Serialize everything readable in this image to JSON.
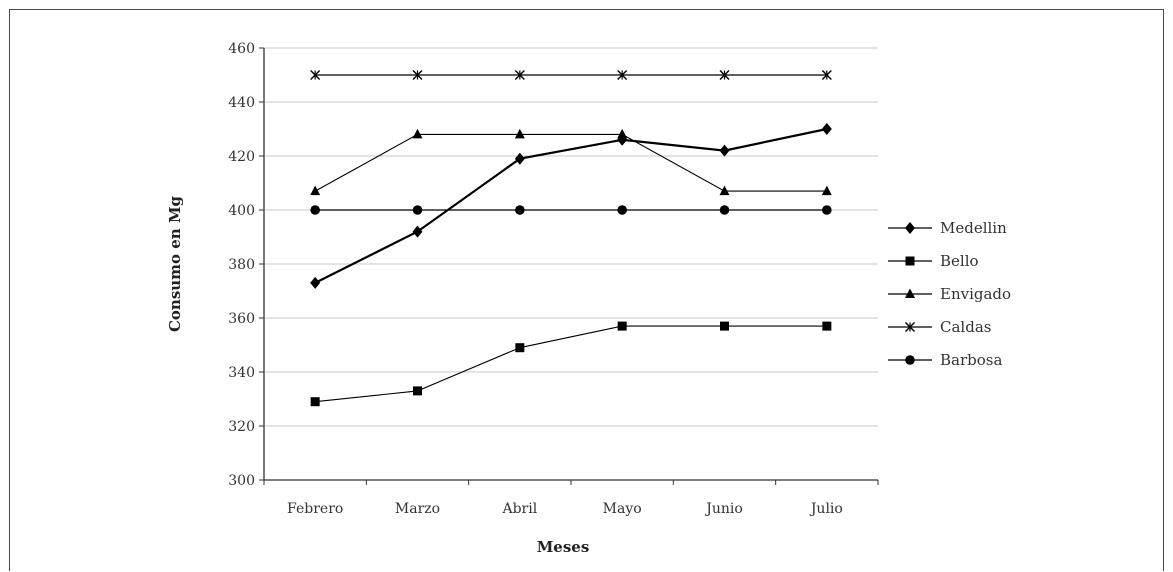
{
  "chart_data": {
    "type": "line",
    "title": "",
    "xlabel": "Meses",
    "ylabel": "Consumo en Mg",
    "categories": [
      "Febrero",
      "Marzo",
      "Abril",
      "Mayo",
      "Junio",
      "Julio"
    ],
    "ylim": [
      300,
      460
    ],
    "yticks": [
      300,
      320,
      340,
      360,
      380,
      400,
      420,
      440,
      460
    ],
    "grid": true,
    "legend_position": "right",
    "series": [
      {
        "name": "Medellin",
        "marker": "diamond",
        "values": [
          373,
          392,
          419,
          426,
          422,
          430
        ]
      },
      {
        "name": "Bello",
        "marker": "square",
        "values": [
          329,
          333,
          349,
          357,
          357,
          357
        ]
      },
      {
        "name": "Envigado",
        "marker": "triangle",
        "values": [
          407,
          428,
          428,
          428,
          407,
          407
        ]
      },
      {
        "name": "Caldas",
        "marker": "x-star",
        "values": [
          450,
          450,
          450,
          450,
          450,
          450
        ]
      },
      {
        "name": "Barbosa",
        "marker": "circle",
        "values": [
          400,
          400,
          400,
          400,
          400,
          400
        ]
      }
    ]
  },
  "colors": {
    "line": "#000000",
    "grid": "#c8c8c8",
    "axis": "#333333",
    "frame": "#4a4a4a"
  }
}
